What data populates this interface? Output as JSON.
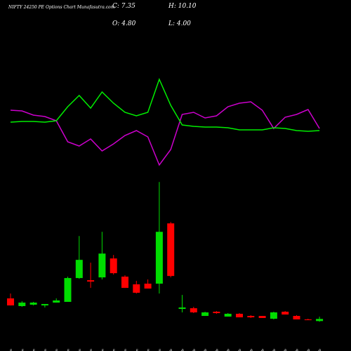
{
  "chart_data": {
    "type": "candlestick",
    "title": "NIFTY 24250  PE Options  Chart Munafasutra.com",
    "ohlc_labels": {
      "close": "C: 7.35",
      "high": "H: 10.10",
      "open": "O: 4.80",
      "low": "L: 4.00"
    },
    "categories": [
      "07 Jan",
      "13 Jan",
      "14 Jan",
      "16 Jan",
      "17 Jan",
      "20 Jan",
      "21 Jan",
      "22 Jan",
      "23 Jan",
      "27 Jan",
      "28 Jan",
      "29 Jan",
      "30 Jan",
      "31 Jan",
      "01 Feb",
      "03 Feb",
      "04 Feb",
      "05 Feb",
      "06 Feb",
      "07 Feb",
      "10 Feb",
      "11 Feb",
      "12 Feb",
      "13 Feb",
      "14 Feb",
      "17 Feb",
      "18 Feb",
      "19 Feb"
    ],
    "open": [
      32.2,
      22.9,
      24.6,
      23.7,
      27.1,
      28.0,
      56.8,
      54.2,
      57.6,
      80.5,
      58.5,
      49.2,
      50.0,
      50.0,
      122.9,
      19.5,
      20.3,
      11.0,
      16.1,
      10.2,
      13.6,
      11.0,
      11.0,
      7.6,
      16.1,
      11.0,
      6.8,
      4.8
    ],
    "high": [
      38.1,
      28.8,
      28.0,
      25.4,
      32.2,
      58.5,
      107.6,
      75.4,
      112.7,
      84.7,
      60.2,
      53.4,
      55.1,
      172.9,
      124.6,
      36.4,
      22.0,
      16.1,
      16.9,
      14.4,
      14.4,
      11.9,
      11.0,
      16.1,
      16.9,
      11.9,
      7.6,
      10.1
    ],
    "low": [
      23.7,
      22.0,
      23.7,
      21.2,
      27.1,
      28.0,
      55.9,
      44.9,
      55.1,
      61.0,
      44.9,
      38.1,
      44.1,
      38.1,
      57.6,
      15.3,
      14.4,
      11.0,
      13.6,
      10.2,
      9.3,
      8.5,
      8.5,
      6.8,
      12.7,
      6.8,
      5.9,
      4.0
    ],
    "close": [
      23.7,
      27.1,
      27.1,
      25.4,
      29.7,
      56.8,
      78.8,
      52.5,
      86.4,
      62.7,
      44.9,
      39.0,
      44.1,
      112.7,
      59.3,
      21.2,
      15.3,
      15.3,
      14.4,
      13.6,
      9.3,
      9.3,
      8.5,
      15.3,
      12.7,
      6.8,
      5.9,
      7.35
    ],
    "up_color": "#00dd00",
    "down_color": "#ff0000",
    "ylim": [
      0,
      174
    ],
    "indicator_ylim": [
      0,
      150
    ],
    "indicator_lines": [
      {
        "color": "#cc00cc",
        "values": [
          93,
          92,
          86,
          84,
          78,
          48,
          42,
          52,
          35,
          45,
          57,
          64,
          55,
          15,
          37,
          87,
          90,
          82,
          85,
          98,
          103,
          105,
          93,
          67,
          83,
          87,
          94,
          67
        ]
      },
      {
        "color": "#00ee00",
        "values": [
          76,
          77,
          77,
          76,
          78,
          98,
          114,
          96,
          119,
          103,
          90,
          85,
          90,
          137,
          100,
          72,
          70,
          69,
          69,
          68,
          65,
          65,
          65,
          68,
          67,
          64,
          63,
          64
        ]
      }
    ]
  }
}
